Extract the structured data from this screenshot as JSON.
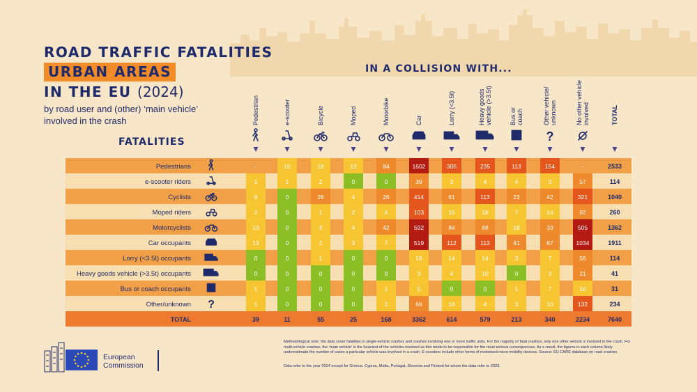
{
  "header": {
    "line1": "ROAD TRAFFIC FATALITIES",
    "line2": "URBAN AREAS",
    "line3": "IN THE EU",
    "year": "(2024)",
    "subtitle": "by road user and (other) ‘main vehicle’ involved in the crash",
    "fatalities_label": "FATALITIES",
    "collision_label": "IN A COLLISION WITH..."
  },
  "chart_data": {
    "type": "table",
    "columns": [
      "Pedestrian",
      "e-scooter",
      "Bicycle",
      "Moped",
      "Motorbike",
      "Car",
      "Lorry (<3.5t)",
      "Heavy goods vehicle (>3.5t)",
      "Bus or coach",
      "Other vehicle/ unknown",
      "No other vehicle involved",
      "TOTAL"
    ],
    "rows": [
      {
        "label": "Pedestrians",
        "icon": "pedestrian-icon",
        "values": [
          "-",
          "10",
          "18",
          "12",
          "84",
          "1602",
          "305",
          "235",
          "113",
          "154",
          "-",
          "2533"
        ]
      },
      {
        "label": "e-scooter riders",
        "icon": "e-scooter-icon",
        "values": [
          "1",
          "1",
          "2",
          "0",
          "0",
          "39",
          "3",
          "4",
          "4",
          "3",
          "57",
          "114"
        ]
      },
      {
        "label": "Cyclists",
        "icon": "bicycle-icon",
        "values": [
          "8",
          "0",
          "28",
          "4",
          "26",
          "414",
          "61",
          "113",
          "23",
          "42",
          "321",
          "1040"
        ]
      },
      {
        "label": "Moped riders",
        "icon": "moped-icon",
        "values": [
          "2",
          "0",
          "1",
          "2",
          "6",
          "103",
          "15",
          "18",
          "7",
          "14",
          "92",
          "260"
        ]
      },
      {
        "label": "Motorcyclists",
        "icon": "motorbike-icon",
        "values": [
          "13",
          "0",
          "3",
          "4",
          "42",
          "592",
          "84",
          "68",
          "18",
          "33",
          "505",
          "1362"
        ]
      },
      {
        "label": "Car occupants",
        "icon": "car-icon",
        "values": [
          "13",
          "0",
          "2",
          "3",
          "7",
          "519",
          "112",
          "113",
          "41",
          "67",
          "1034",
          "1911"
        ]
      },
      {
        "label": "Lorry (<3.5t) occupants",
        "icon": "lorry-icon",
        "values": [
          "0",
          "0",
          "1",
          "0",
          "0",
          "19",
          "14",
          "14",
          "3",
          "7",
          "56",
          "114"
        ]
      },
      {
        "label": "Heavy goods vehicle (>3.5t) occupants",
        "icon": "truck-icon",
        "values": [
          "0",
          "0",
          "0",
          "0",
          "0",
          "3",
          "4",
          "10",
          "0",
          "3",
          "21",
          "41"
        ]
      },
      {
        "label": "Bus or coach occupants",
        "icon": "bus-icon",
        "values": [
          "1",
          "0",
          "0",
          "0",
          "1",
          "5",
          "0",
          "0",
          "1",
          "7",
          "16",
          "31"
        ]
      },
      {
        "label": "Other/unknown",
        "icon": "question-icon",
        "values": [
          "1",
          "0",
          "0",
          "0",
          "2",
          "66",
          "16",
          "4",
          "3",
          "10",
          "132",
          "234"
        ]
      }
    ],
    "total_row": {
      "label": "TOTAL",
      "values": [
        "39",
        "11",
        "55",
        "25",
        "168",
        "3362",
        "614",
        "579",
        "213",
        "340",
        "2234",
        "7640"
      ]
    },
    "color_scale": {
      "green": "#8cbf26",
      "yellow": "#f6c531",
      "orange": "#ee8a2b",
      "red_orange": "#e4561c",
      "dark_red": "#b21a12"
    },
    "band_colors": {
      "orange_row": "#f2a048",
      "light_row": "#f8dfb1",
      "total_row": "#ee7a30"
    }
  },
  "footer": {
    "logo_line1": "European",
    "logo_line2": "Commission",
    "note": "Methodological note: the data cover fatalities in single-vehicle crashes and crashes involving one or more traffic units. For the majority of fatal crashes, only one other vehicle is involved in the crash. For multi-vehicle crashes, the ‘main vehicle’ is the heaviest of the vehicles involved as this tends to be responsible for the most serious consequences. As a result, the figures in each column likely underestimate the number of cases a particular vehicle was involved in a crash. E-scooters include other forms of motorised micro-mobility devices. Source: EU CARE database on road crashes.",
    "note2": "Data refer to the year 2024 except for Greece, Cyprus, Malta, Portugal, Slovenia and Finland for whom the data refer to 2023."
  }
}
